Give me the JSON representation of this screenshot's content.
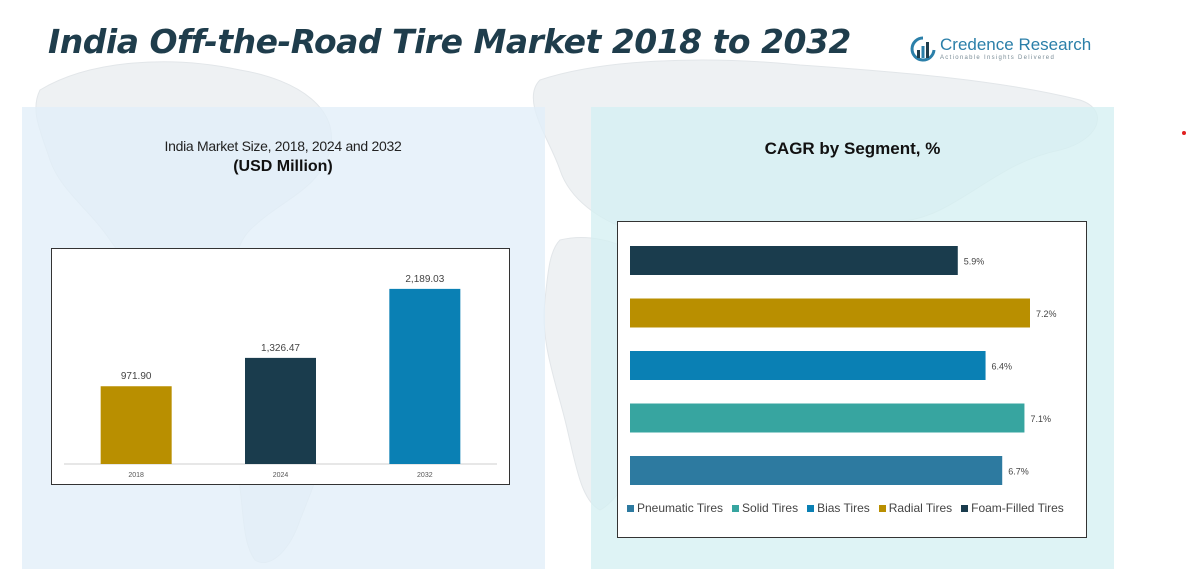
{
  "page": {
    "title": "India Off-the-Road Tire Market 2018 to 2032"
  },
  "brand": {
    "name_part1": "Credence",
    "name_part2": " Research",
    "tagline": "Actionable Insights Delivered",
    "color": "#2b7fa9"
  },
  "left_chart": {
    "subtitle": "India Market Size, 2018, 2024 and 2032",
    "unit": "(USD Million)"
  },
  "right_chart": {
    "title": "CAGR by Segment, %"
  },
  "chart_data": [
    {
      "type": "bar",
      "title": "India Market Size, 2018, 2024 and 2032",
      "subtitle": "(USD Million)",
      "categories": [
        "2018",
        "2024",
        "2032"
      ],
      "values": [
        971.9,
        1326.47,
        2189.03
      ],
      "value_labels": [
        "971.90",
        "1,326.47",
        "2,189.03"
      ],
      "colors": [
        "#b98f00",
        "#1a3c4d",
        "#0a80b4"
      ],
      "ylim": [
        0,
        2500
      ],
      "grid": false,
      "xlabel": "",
      "ylabel": ""
    },
    {
      "type": "bar",
      "orientation": "horizontal",
      "title": "CAGR by Segment, %",
      "categories": [
        "Foam-Filled Tires",
        "Radial Tires",
        "Bias Tires",
        "Solid Tires",
        "Pneumatic Tires"
      ],
      "values": [
        5.9,
        7.2,
        6.4,
        7.1,
        6.7
      ],
      "value_labels": [
        "5.9%",
        "7.2%",
        "6.4%",
        "7.1%",
        "6.7%"
      ],
      "colors": [
        "#1a3c4d",
        "#b98f00",
        "#0a80b4",
        "#37a5a0",
        "#2d7aa0"
      ],
      "xlim": [
        0,
        7.2
      ],
      "grid": false,
      "legend": {
        "position": "bottom",
        "entries": [
          {
            "name": "Pneumatic Tires",
            "color": "#2d7aa0"
          },
          {
            "name": "Solid Tires",
            "color": "#37a5a0"
          },
          {
            "name": "Bias Tires",
            "color": "#0a80b4"
          },
          {
            "name": "Radial Tires",
            "color": "#b98f00"
          },
          {
            "name": "Foam-Filled Tires",
            "color": "#1a3c4d"
          }
        ]
      }
    }
  ]
}
